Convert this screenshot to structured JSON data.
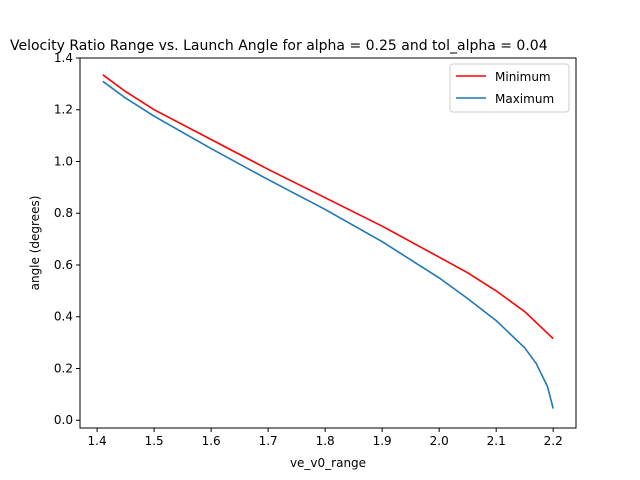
{
  "chart_data": {
    "type": "line",
    "title": "Velocity Ratio Range vs. Launch Angle for alpha = 0.25 and tol_alpha = 0.04",
    "xlabel": "ve_v0_range",
    "ylabel": "angle (degrees)",
    "xlim": [
      1.37,
      2.24
    ],
    "ylim": [
      -0.03,
      1.4
    ],
    "xticks": [
      1.4,
      1.5,
      1.6,
      1.7,
      1.8,
      1.9,
      2.0,
      2.1,
      2.2
    ],
    "xtick_labels": [
      "1.4",
      "1.5",
      "1.6",
      "1.7",
      "1.8",
      "1.9",
      "2.0",
      "2.1",
      "2.2"
    ],
    "yticks": [
      0.0,
      0.2,
      0.4,
      0.6,
      0.8,
      1.0,
      1.2,
      1.4
    ],
    "ytick_labels": [
      "0.0",
      "0.2",
      "0.4",
      "0.6",
      "0.8",
      "1.0",
      "1.2",
      "1.4"
    ],
    "grid": false,
    "legend_position": "upper right",
    "series": [
      {
        "name": "Minimum",
        "color": "#ff0000",
        "x": [
          1.41,
          1.45,
          1.5,
          1.6,
          1.7,
          1.8,
          1.9,
          2.0,
          2.05,
          2.1,
          2.15,
          2.2
        ],
        "y": [
          1.335,
          1.27,
          1.2,
          1.085,
          0.97,
          0.86,
          0.75,
          0.63,
          0.57,
          0.5,
          0.42,
          0.315
        ]
      },
      {
        "name": "Maximum",
        "color": "#1f77b4",
        "x": [
          1.41,
          1.45,
          1.5,
          1.6,
          1.7,
          1.8,
          1.9,
          2.0,
          2.05,
          2.1,
          2.15,
          2.17,
          2.19,
          2.2
        ],
        "y": [
          1.31,
          1.245,
          1.175,
          1.05,
          0.93,
          0.815,
          0.69,
          0.55,
          0.47,
          0.385,
          0.28,
          0.22,
          0.13,
          0.045
        ]
      }
    ]
  }
}
